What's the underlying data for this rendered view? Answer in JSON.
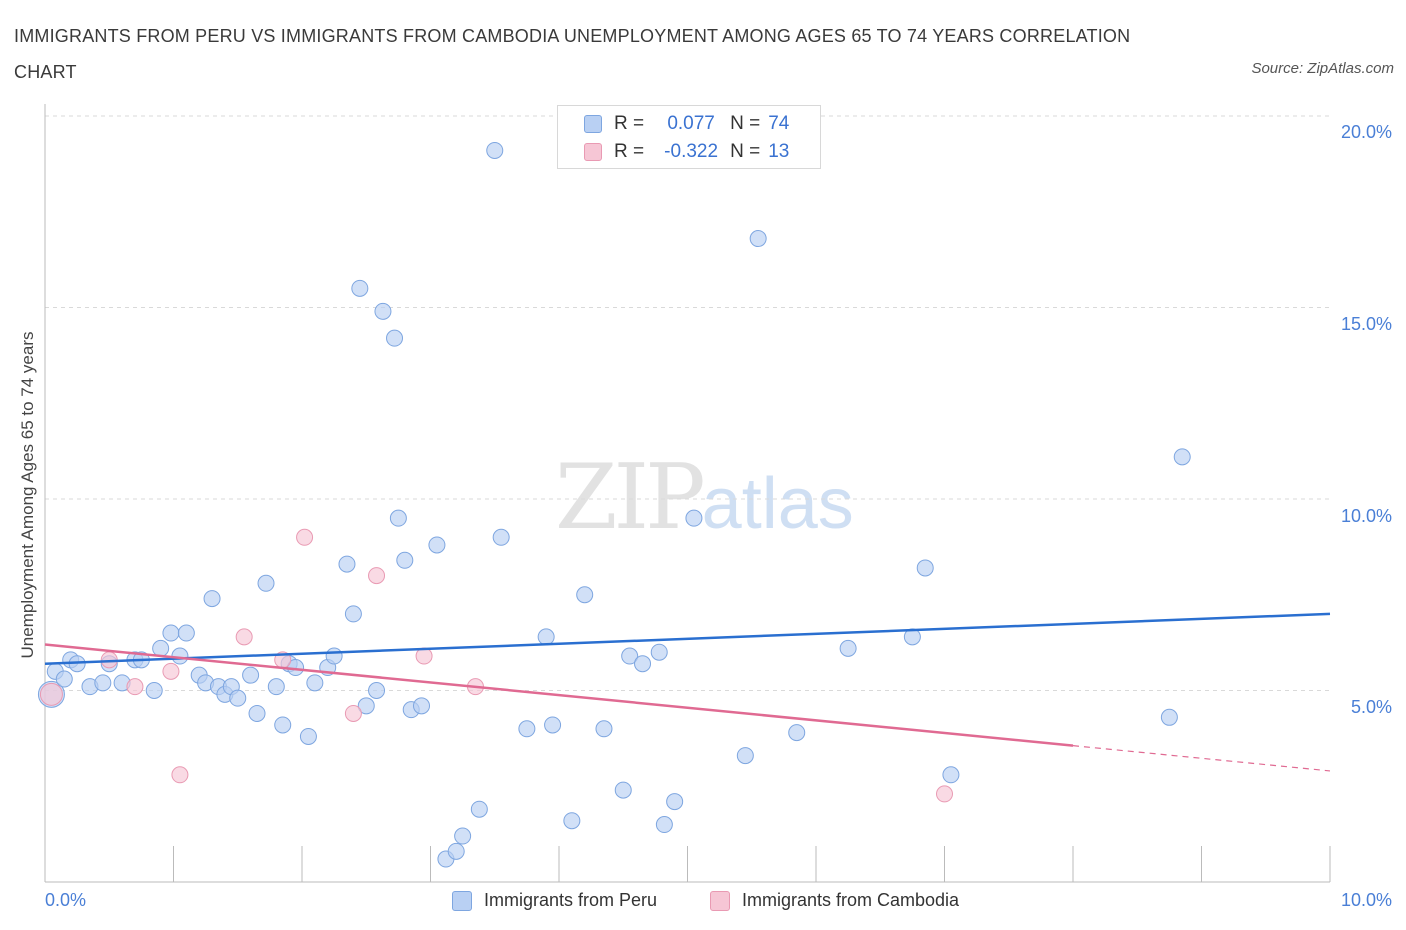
{
  "title": "IMMIGRANTS FROM PERU VS IMMIGRANTS FROM CAMBODIA UNEMPLOYMENT AMONG AGES 65 TO 74 YEARS CORRELATION CHART",
  "source": "Source: ZipAtlas.com",
  "watermark": {
    "zip": "ZIP",
    "atlas": "atlas"
  },
  "legend": {
    "peru": {
      "r_label": "R =",
      "r_value": "0.077",
      "n_label": "N =",
      "n_value": "74"
    },
    "cambodia": {
      "r_label": "R =",
      "r_value": "-0.322",
      "n_label": "N =",
      "n_value": "13"
    }
  },
  "colors": {
    "peru_fill": "#b9d0f3",
    "peru_stroke": "#7ea6e0",
    "peru_line": "#2a6fd0",
    "cambodia_fill": "#f6c6d5",
    "cambodia_stroke": "#e99ab3",
    "cambodia_line": "#e06a92",
    "tick_text": "#4a7fd6",
    "grid": "#d9d9d9"
  },
  "chart_data": {
    "type": "scatter",
    "title": "IMMIGRANTS FROM PERU VS IMMIGRANTS FROM CAMBODIA UNEMPLOYMENT AMONG AGES 65 TO 74 YEARS CORRELATION CHART",
    "xlabel": "",
    "ylabel": "Unemployment Among Ages 65 to 74 years",
    "xlim": [
      0,
      10
    ],
    "ylim": [
      0,
      20
    ],
    "x_tick_labels": [
      "0.0%",
      "10.0%"
    ],
    "y_tick_values": [
      5,
      10,
      15,
      20
    ],
    "y_tick_labels": [
      "5.0%",
      "10.0%",
      "15.0%",
      "20.0%"
    ],
    "series": [
      {
        "name": "Immigrants from Peru",
        "trend": {
          "x": [
            0,
            10
          ],
          "y": [
            5.7,
            7.0
          ],
          "dashed_after": null
        },
        "points": [
          [
            0.05,
            4.9
          ],
          [
            0.08,
            5.5
          ],
          [
            0.15,
            5.3
          ],
          [
            0.2,
            5.8
          ],
          [
            0.25,
            5.7
          ],
          [
            0.35,
            5.1
          ],
          [
            0.5,
            5.7
          ],
          [
            0.6,
            5.2
          ],
          [
            0.7,
            5.8
          ],
          [
            0.75,
            5.8
          ],
          [
            0.85,
            5.0
          ],
          [
            0.9,
            6.1
          ],
          [
            0.98,
            6.5
          ],
          [
            1.05,
            5.9
          ],
          [
            1.1,
            6.5
          ],
          [
            1.2,
            5.4
          ],
          [
            1.25,
            5.2
          ],
          [
            1.3,
            7.4
          ],
          [
            1.35,
            5.1
          ],
          [
            1.4,
            4.9
          ],
          [
            1.45,
            5.1
          ],
          [
            1.5,
            4.8
          ],
          [
            1.6,
            5.4
          ],
          [
            1.65,
            4.4
          ],
          [
            1.72,
            7.8
          ],
          [
            1.8,
            5.1
          ],
          [
            1.85,
            4.1
          ],
          [
            1.9,
            5.7
          ],
          [
            1.95,
            5.6
          ],
          [
            2.05,
            3.8
          ],
          [
            2.1,
            5.2
          ],
          [
            2.2,
            5.6
          ],
          [
            2.25,
            5.9
          ],
          [
            2.35,
            8.3
          ],
          [
            2.4,
            7.0
          ],
          [
            2.45,
            15.5
          ],
          [
            2.5,
            4.6
          ],
          [
            2.58,
            5.0
          ],
          [
            2.63,
            14.9
          ],
          [
            2.75,
            9.5
          ],
          [
            2.8,
            8.4
          ],
          [
            2.85,
            4.5
          ],
          [
            2.93,
            4.6
          ],
          [
            3.05,
            8.8
          ],
          [
            3.12,
            0.6
          ],
          [
            3.2,
            0.8
          ],
          [
            3.25,
            1.2
          ],
          [
            3.38,
            1.9
          ],
          [
            3.5,
            19.1
          ],
          [
            3.55,
            9.0
          ],
          [
            3.75,
            4.0
          ],
          [
            3.9,
            6.4
          ],
          [
            3.95,
            4.1
          ],
          [
            4.1,
            1.6
          ],
          [
            4.2,
            7.5
          ],
          [
            4.35,
            4.0
          ],
          [
            4.5,
            2.4
          ],
          [
            4.55,
            5.9
          ],
          [
            4.65,
            5.7
          ],
          [
            4.78,
            6.0
          ],
          [
            4.82,
            1.5
          ],
          [
            4.9,
            2.1
          ],
          [
            5.05,
            9.5
          ],
          [
            5.45,
            3.3
          ],
          [
            5.55,
            16.8
          ],
          [
            5.85,
            3.9
          ],
          [
            6.25,
            6.1
          ],
          [
            6.75,
            6.4
          ],
          [
            6.85,
            8.2
          ],
          [
            7.05,
            2.8
          ],
          [
            8.75,
            4.3
          ],
          [
            8.85,
            11.1
          ],
          [
            2.72,
            14.2
          ],
          [
            0.45,
            5.2
          ]
        ]
      },
      {
        "name": "Immigrants from Cambodia",
        "trend": {
          "x": [
            0,
            10
          ],
          "y": [
            6.2,
            2.9
          ],
          "dashed_after": 8.0
        },
        "points": [
          [
            0.05,
            4.9
          ],
          [
            0.5,
            5.8
          ],
          [
            0.7,
            5.1
          ],
          [
            0.98,
            5.5
          ],
          [
            1.05,
            2.8
          ],
          [
            1.55,
            6.4
          ],
          [
            1.85,
            5.8
          ],
          [
            2.02,
            9.0
          ],
          [
            2.4,
            4.4
          ],
          [
            2.58,
            8.0
          ],
          [
            2.95,
            5.9
          ],
          [
            3.35,
            5.1
          ],
          [
            7.0,
            2.3
          ]
        ]
      }
    ]
  },
  "bottom_legend": {
    "peru": "Immigrants from Peru",
    "cambodia": "Immigrants from Cambodia"
  }
}
